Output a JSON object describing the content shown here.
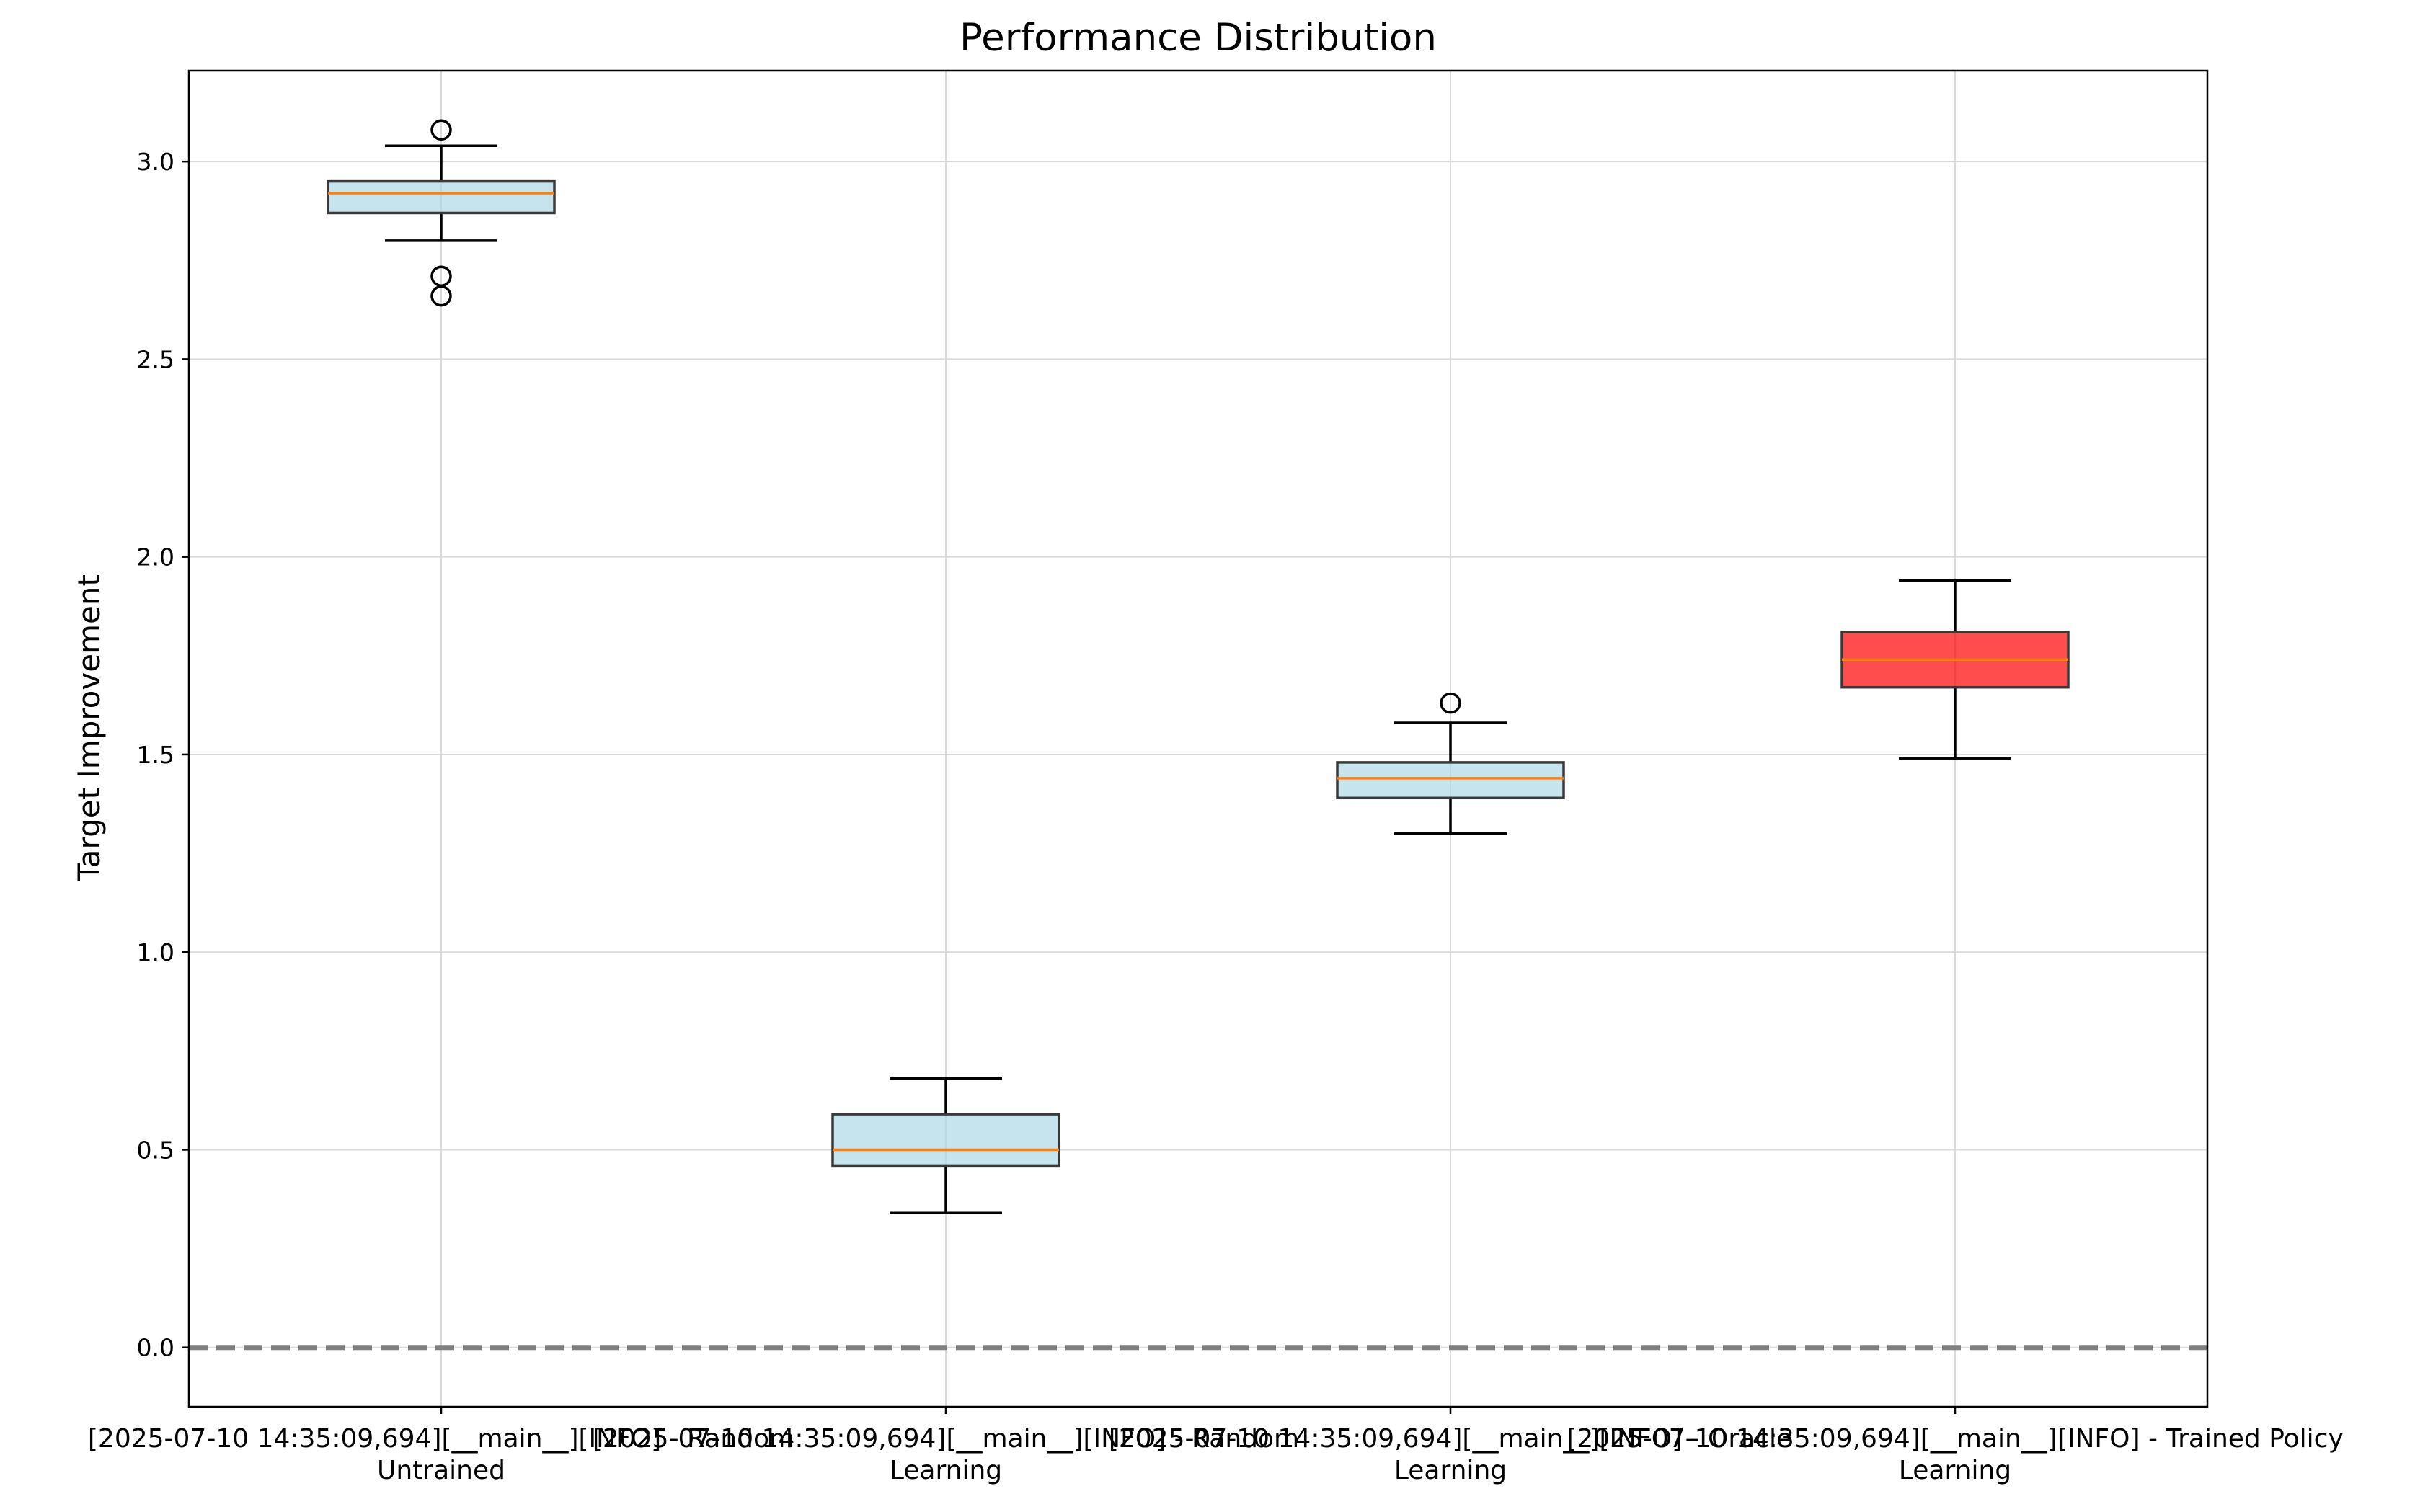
{
  "chart_data": {
    "type": "box",
    "title": "Performance Distribution",
    "xlabel": "",
    "ylabel": "Target Improvement",
    "ylim": [
      -0.15,
      3.23
    ],
    "yticks": [
      0.0,
      0.5,
      1.0,
      1.5,
      2.0,
      2.5,
      3.0
    ],
    "ytick_labels": [
      "0.0",
      "0.5",
      "1.0",
      "1.5",
      "2.0",
      "2.5",
      "3.0"
    ],
    "grid": true,
    "reference_line": {
      "y": 0.0,
      "style": "dashed",
      "color": "#808080"
    },
    "categories": [
      {
        "label_lines": [
          "[2025-07-10 14:35:09,694][__main__][INFO] - Random",
          "Untrained"
        ],
        "stats": {
          "whislo": 2.8,
          "q1": 2.87,
          "median": 2.92,
          "q3": 2.95,
          "whishi": 3.04
        },
        "outliers": [
          3.08,
          2.71,
          2.66
        ],
        "color": "#add8e6"
      },
      {
        "label_lines": [
          "[2025-07-10 14:35:09,694][__main__][INFO] - Random",
          "Learning"
        ],
        "stats": {
          "whislo": 0.34,
          "q1": 0.46,
          "median": 0.5,
          "q3": 0.59,
          "whishi": 0.68
        },
        "outliers": [],
        "color": "#add8e6"
      },
      {
        "label_lines": [
          "[2025-07-10 14:35:09,694][__main__][INFO] - Oracle",
          "Learning"
        ],
        "stats": {
          "whislo": 1.3,
          "q1": 1.39,
          "median": 1.44,
          "q3": 1.48,
          "whishi": 1.58
        },
        "outliers": [
          1.63
        ],
        "color": "#add8e6"
      },
      {
        "label_lines": [
          "[2025-07-10 14:35:09,694][__main__][INFO] - Trained Policy",
          "Learning"
        ],
        "stats": {
          "whislo": 1.49,
          "q1": 1.67,
          "median": 1.74,
          "q3": 1.81,
          "whishi": 1.94
        },
        "outliers": [],
        "color": "#ff0000"
      }
    ],
    "median_color": "#ff7f0e"
  }
}
